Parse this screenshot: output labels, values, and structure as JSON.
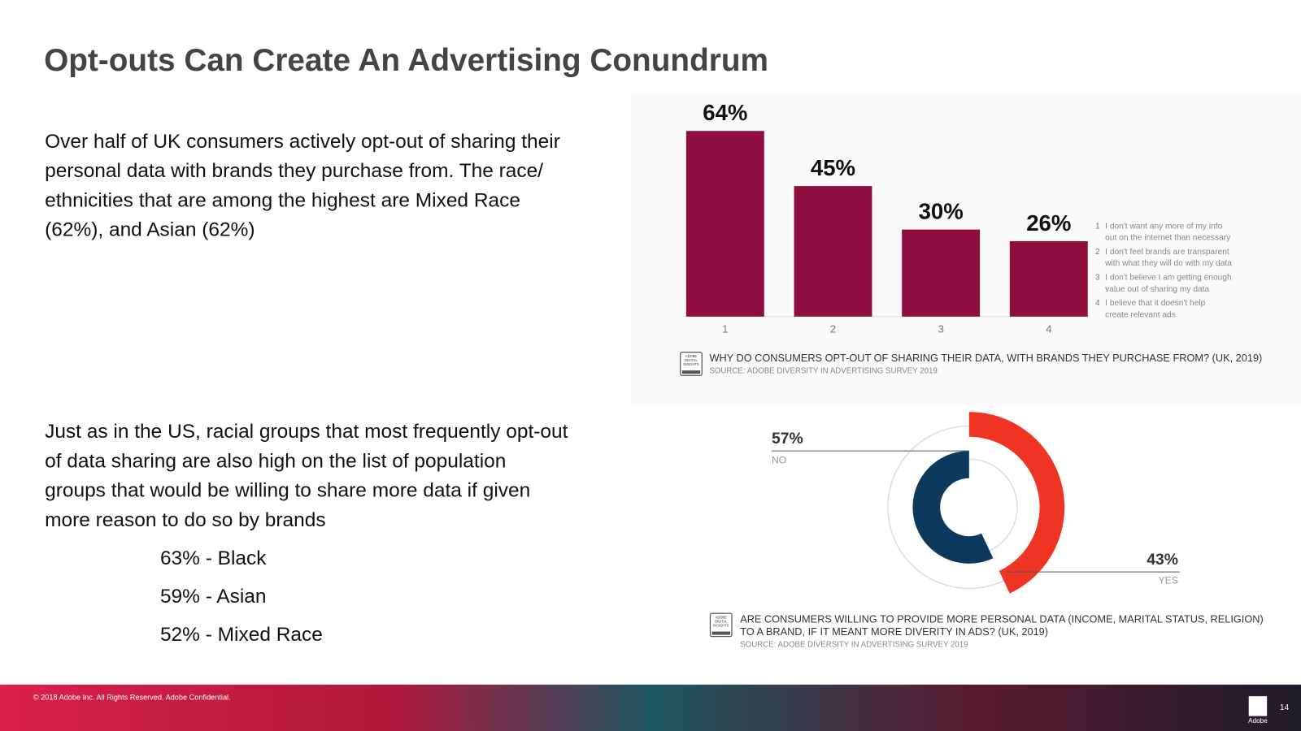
{
  "title": "Opt-outs Can Create An Advertising Conundrum",
  "paragraphs": [
    {
      "lines": [
        "Over half of UK consumers actively opt-out of sharing their",
        "personal data with brands they purchase from. The race/",
        "ethnicities that are among the highest are Mixed Race",
        "(62%), and Asian (62%)"
      ]
    },
    {
      "lines": [
        "Just as in the US, racial groups that most frequently opt-out",
        "of data sharing are also high on the list of population",
        "groups that would be willing to share more data if given",
        "more reason to do so by brands"
      ]
    }
  ],
  "list": [
    "63% - Black",
    "59% - Asian",
    "52% - Mixed Race"
  ],
  "chart_data": [
    {
      "type": "bar",
      "categories": [
        "1",
        "2",
        "3",
        "4"
      ],
      "values": [
        64,
        45,
        30,
        26
      ],
      "value_labels": [
        "64%",
        "45%",
        "30%",
        "26%"
      ],
      "color": "#8f0e3e",
      "notes": [
        {
          "num": "1",
          "lines": [
            "I don't want any more of my info",
            "out on the internet than necessary"
          ]
        },
        {
          "num": "2",
          "lines": [
            "I don't feel brands are transparent",
            "with what they will do with my data"
          ]
        },
        {
          "num": "3",
          "lines": [
            "I don't believe I am getting enough",
            "value out of sharing my data"
          ]
        },
        {
          "num": "4",
          "lines": [
            "I believe that it doesn't help",
            "create relevant ads"
          ]
        }
      ],
      "caption_lines": [
        "WHY DO CONSUMERS OPT-OUT OF SHARING THEIR DATA, WITH BRANDS THEY PURCHASE FROM? (UK, 2019)"
      ],
      "source": "SOURCE: ADOBE DIVERSITY IN ADVERTISING SURVEY 2019",
      "badge": [
        "ADOBE",
        "DIGITAL",
        "INSIGHTS"
      ]
    },
    {
      "type": "pie",
      "donut": true,
      "categories": [
        "NO",
        "YES"
      ],
      "values": [
        57,
        43
      ],
      "value_labels": [
        "57%",
        "43%"
      ],
      "colors": [
        "#0d3a5c",
        "#f03424"
      ],
      "caption_lines": [
        "ARE CONSUMERS WILLING TO PROVIDE MORE PERSONAL DATA (INCOME, MARITAL STATUS, RELIGION)",
        "TO A BRAND, IF IT MEANT MORE DIVERITY IN ADS? (UK, 2019)"
      ],
      "source": "SOURCE: ADOBE DIVERSITY IN ADVERTISING SURVEY 2019",
      "badge": [
        "ADOBE",
        "DIGITAL",
        "INSIGHTS"
      ]
    }
  ],
  "footer": {
    "copyright": "© 2018 Adobe Inc. All Rights Reserved. Adobe Confidential.",
    "page": "14",
    "brand": "Adobe"
  }
}
